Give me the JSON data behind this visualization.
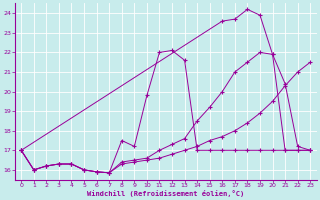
{
  "xlabel": "Windchill (Refroidissement éolien,°C)",
  "bg_color": "#c8ecec",
  "line_color": "#990099",
  "grid_color": "#aadddd",
  "xlim": [
    -0.5,
    23.5
  ],
  "ylim": [
    15.5,
    24.5
  ],
  "yticks": [
    16,
    17,
    18,
    19,
    20,
    21,
    22,
    23,
    24
  ],
  "xticks": [
    0,
    1,
    2,
    3,
    4,
    5,
    6,
    7,
    8,
    9,
    10,
    11,
    12,
    13,
    14,
    15,
    16,
    17,
    18,
    19,
    20,
    21,
    22,
    23
  ],
  "line1_x": [
    0,
    1,
    2,
    3,
    4,
    5,
    6,
    7,
    8,
    9,
    10,
    11,
    12,
    13,
    14,
    15,
    16,
    17,
    18,
    19,
    20,
    21,
    22,
    23
  ],
  "line1_y": [
    17.0,
    16.0,
    16.2,
    16.3,
    16.3,
    16.0,
    15.9,
    15.85,
    17.5,
    17.2,
    19.8,
    22.0,
    22.1,
    21.6,
    17.0,
    17.0,
    17.0,
    17.0,
    17.0,
    17.0,
    17.0,
    17.0,
    17.0,
    17.0
  ],
  "line2_x": [
    0,
    1,
    2,
    3,
    4,
    5,
    6,
    7,
    8,
    9,
    10,
    11,
    12,
    13,
    14,
    15,
    16,
    17,
    18,
    19,
    20,
    21,
    22,
    23
  ],
  "line2_y": [
    17.0,
    16.0,
    16.2,
    16.3,
    16.3,
    16.0,
    15.9,
    15.85,
    16.4,
    16.5,
    16.6,
    17.0,
    17.3,
    17.6,
    18.5,
    19.2,
    20.0,
    21.0,
    21.5,
    22.0,
    21.9,
    17.0,
    17.0,
    17.0
  ],
  "line3_x": [
    0,
    1,
    2,
    3,
    4,
    5,
    6,
    7,
    8,
    9,
    10,
    11,
    12,
    13,
    14,
    15,
    16,
    17,
    18,
    19,
    20,
    21,
    22,
    23
  ],
  "line3_y": [
    17.0,
    16.0,
    16.2,
    16.3,
    16.3,
    16.0,
    15.9,
    15.85,
    16.3,
    16.4,
    16.5,
    16.6,
    16.8,
    17.0,
    17.2,
    17.5,
    17.7,
    18.0,
    18.4,
    18.9,
    19.5,
    20.3,
    21.0,
    21.5
  ],
  "line4_x": [
    0,
    16,
    17,
    18,
    19,
    20,
    21,
    22,
    23
  ],
  "line4_y": [
    17.0,
    23.6,
    23.7,
    24.2,
    23.9,
    21.9,
    20.4,
    17.2,
    17.0
  ]
}
